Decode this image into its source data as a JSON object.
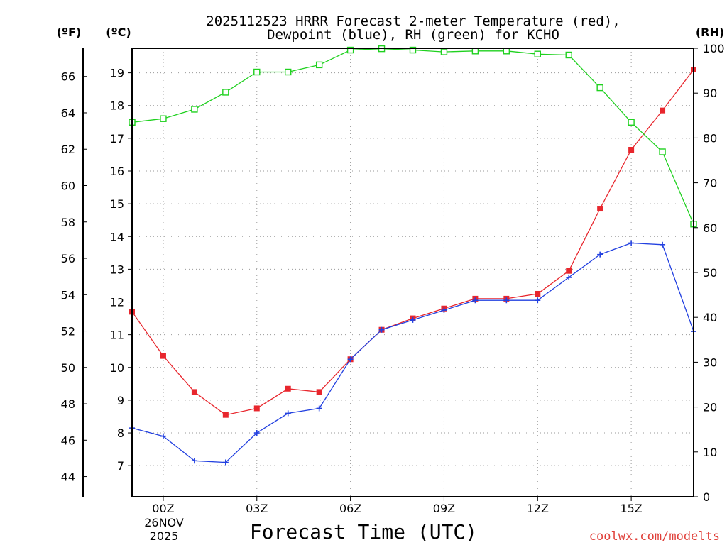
{
  "chart_data": {
    "type": "line",
    "title_line1": "2025112523 HRRR Forecast 2-meter Temperature (red),",
    "title_line2": "Dewpoint (blue), RH (green) for KCHO",
    "xlabel": "Forecast Time (UTC)",
    "credit": "coolwx.com/modelts",
    "date_label": {
      "day": "26NOV",
      "year": "2025"
    },
    "x_range": [
      -1,
      17
    ],
    "x_ticks": [
      {
        "x": 0,
        "label": "00Z"
      },
      {
        "x": 3,
        "label": "03Z"
      },
      {
        "x": 6,
        "label": "06Z"
      },
      {
        "x": 9,
        "label": "09Z"
      },
      {
        "x": 12,
        "label": "12Z"
      },
      {
        "x": 15,
        "label": "15Z"
      }
    ],
    "left_axis_c": {
      "unit": "(ºC)",
      "range": [
        6.05,
        19.75
      ],
      "ticks": [
        7,
        8,
        9,
        10,
        11,
        12,
        13,
        14,
        15,
        16,
        17,
        18,
        19
      ]
    },
    "left_axis_f": {
      "unit": "(ºF)",
      "ticks": [
        44,
        46,
        48,
        50,
        52,
        54,
        56,
        58,
        60,
        62,
        64,
        66
      ]
    },
    "right_axis_rh": {
      "unit": "(RH)",
      "range": [
        0,
        100
      ],
      "ticks": [
        0,
        10,
        20,
        30,
        40,
        50,
        60,
        70,
        80,
        90,
        100
      ]
    },
    "x": [
      -1,
      0,
      1,
      2,
      3,
      4,
      5,
      6,
      7,
      8,
      9,
      10,
      11,
      12,
      13,
      14,
      15,
      16,
      17
    ],
    "series": [
      {
        "name": "Temperature",
        "axis": "C",
        "color": "#e8262d",
        "marker": "filled-square",
        "values": [
          11.7,
          10.35,
          9.25,
          8.55,
          8.75,
          9.35,
          9.25,
          10.25,
          11.15,
          11.5,
          11.8,
          12.1,
          12.1,
          12.25,
          12.95,
          14.85,
          16.65,
          17.85,
          19.1
        ]
      },
      {
        "name": "Dewpoint",
        "axis": "C",
        "color": "#2240e0",
        "marker": "plus",
        "values": [
          8.15,
          7.9,
          7.15,
          7.1,
          8.0,
          8.6,
          8.75,
          10.25,
          11.15,
          11.45,
          11.75,
          12.05,
          12.05,
          12.05,
          12.75,
          13.45,
          13.8,
          13.75,
          11.1
        ]
      },
      {
        "name": "RH",
        "axis": "RH",
        "color": "#1fd11f",
        "marker": "open-square",
        "values": [
          83.5,
          84.3,
          86.4,
          90.2,
          94.7,
          94.7,
          96.3,
          99.6,
          99.9,
          99.6,
          99.2,
          99.4,
          99.4,
          98.7,
          98.5,
          91.2,
          83.5,
          76.9,
          60.8
        ]
      }
    ]
  }
}
